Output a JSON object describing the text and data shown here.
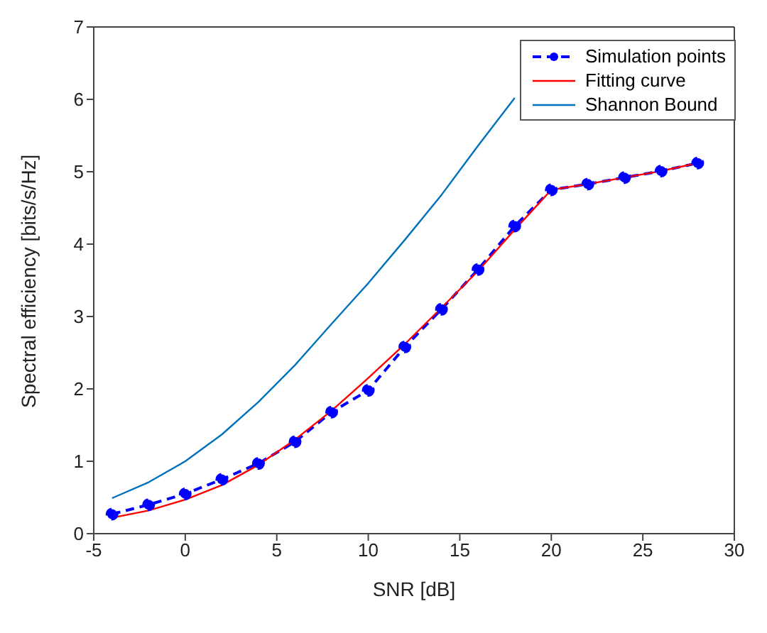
{
  "chart_data": {
    "type": "line",
    "xlabel": "SNR [dB]",
    "ylabel": "Spectral efficiency [bits/s/Hz]",
    "x": [
      -4,
      -2,
      0,
      2,
      4,
      6,
      8,
      10,
      12,
      14,
      16,
      18,
      20,
      22,
      24,
      26,
      28
    ],
    "series": [
      {
        "name": "Simulation points",
        "color": "#0000ff",
        "marker": "circle",
        "line_style": "dashed",
        "values": [
          0.27,
          0.4,
          0.55,
          0.75,
          0.97,
          1.27,
          1.68,
          1.98,
          2.58,
          3.1,
          3.65,
          4.25,
          4.75,
          4.83,
          4.92,
          5.01,
          5.12
        ]
      },
      {
        "name": "Fitting curve",
        "color": "#ff0000",
        "marker": "none",
        "line_style": "solid",
        "values": [
          0.22,
          0.32,
          0.47,
          0.67,
          0.95,
          1.3,
          1.7,
          2.15,
          2.62,
          3.12,
          3.63,
          4.2,
          4.75,
          4.83,
          4.92,
          5.01,
          5.12
        ]
      },
      {
        "name": "Shannon Bound",
        "color": "#0072bd",
        "marker": "none",
        "line_style": "solid",
        "x": [
          -4,
          -2,
          0,
          2,
          4,
          6,
          8,
          10,
          12,
          14,
          16,
          18
        ],
        "values": [
          0.49,
          0.71,
          1.0,
          1.37,
          1.82,
          2.33,
          2.9,
          3.46,
          4.06,
          4.68,
          5.36,
          6.02
        ]
      }
    ],
    "xlim": [
      -5,
      30
    ],
    "xticks": [
      -5,
      0,
      5,
      10,
      15,
      20,
      25,
      30
    ],
    "ylim": [
      0,
      7
    ],
    "yticks": [
      0,
      1,
      2,
      3,
      4,
      5,
      6,
      7
    ],
    "grid": false,
    "legend": "top right"
  }
}
